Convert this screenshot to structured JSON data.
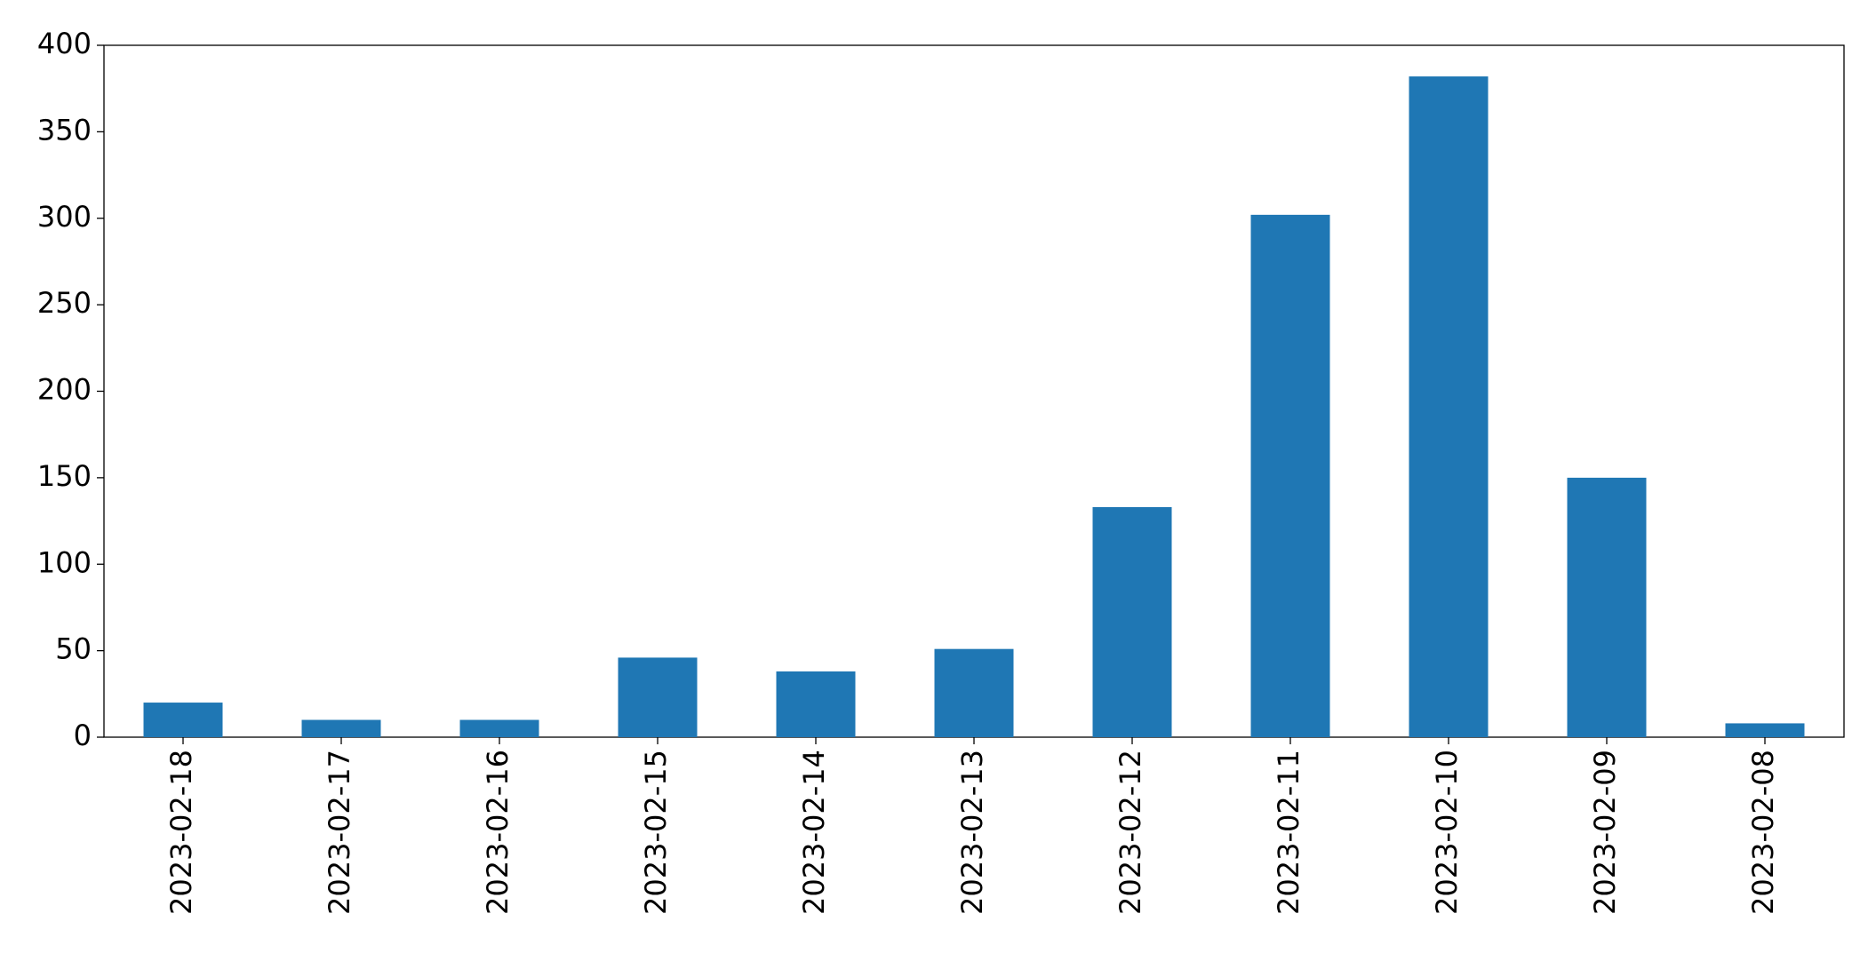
{
  "chart_data": {
    "type": "bar",
    "categories": [
      "2023-02-18",
      "2023-02-17",
      "2023-02-16",
      "2023-02-15",
      "2023-02-14",
      "2023-02-13",
      "2023-02-12",
      "2023-02-11",
      "2023-02-10",
      "2023-02-09",
      "2023-02-08"
    ],
    "values": [
      20,
      10,
      10,
      46,
      38,
      51,
      133,
      302,
      382,
      150,
      8
    ],
    "color": "#1f77b4",
    "ylim": [
      0,
      400
    ],
    "yticks": [
      0,
      50,
      100,
      150,
      200,
      250,
      300,
      350,
      400
    ],
    "grid": false
  }
}
